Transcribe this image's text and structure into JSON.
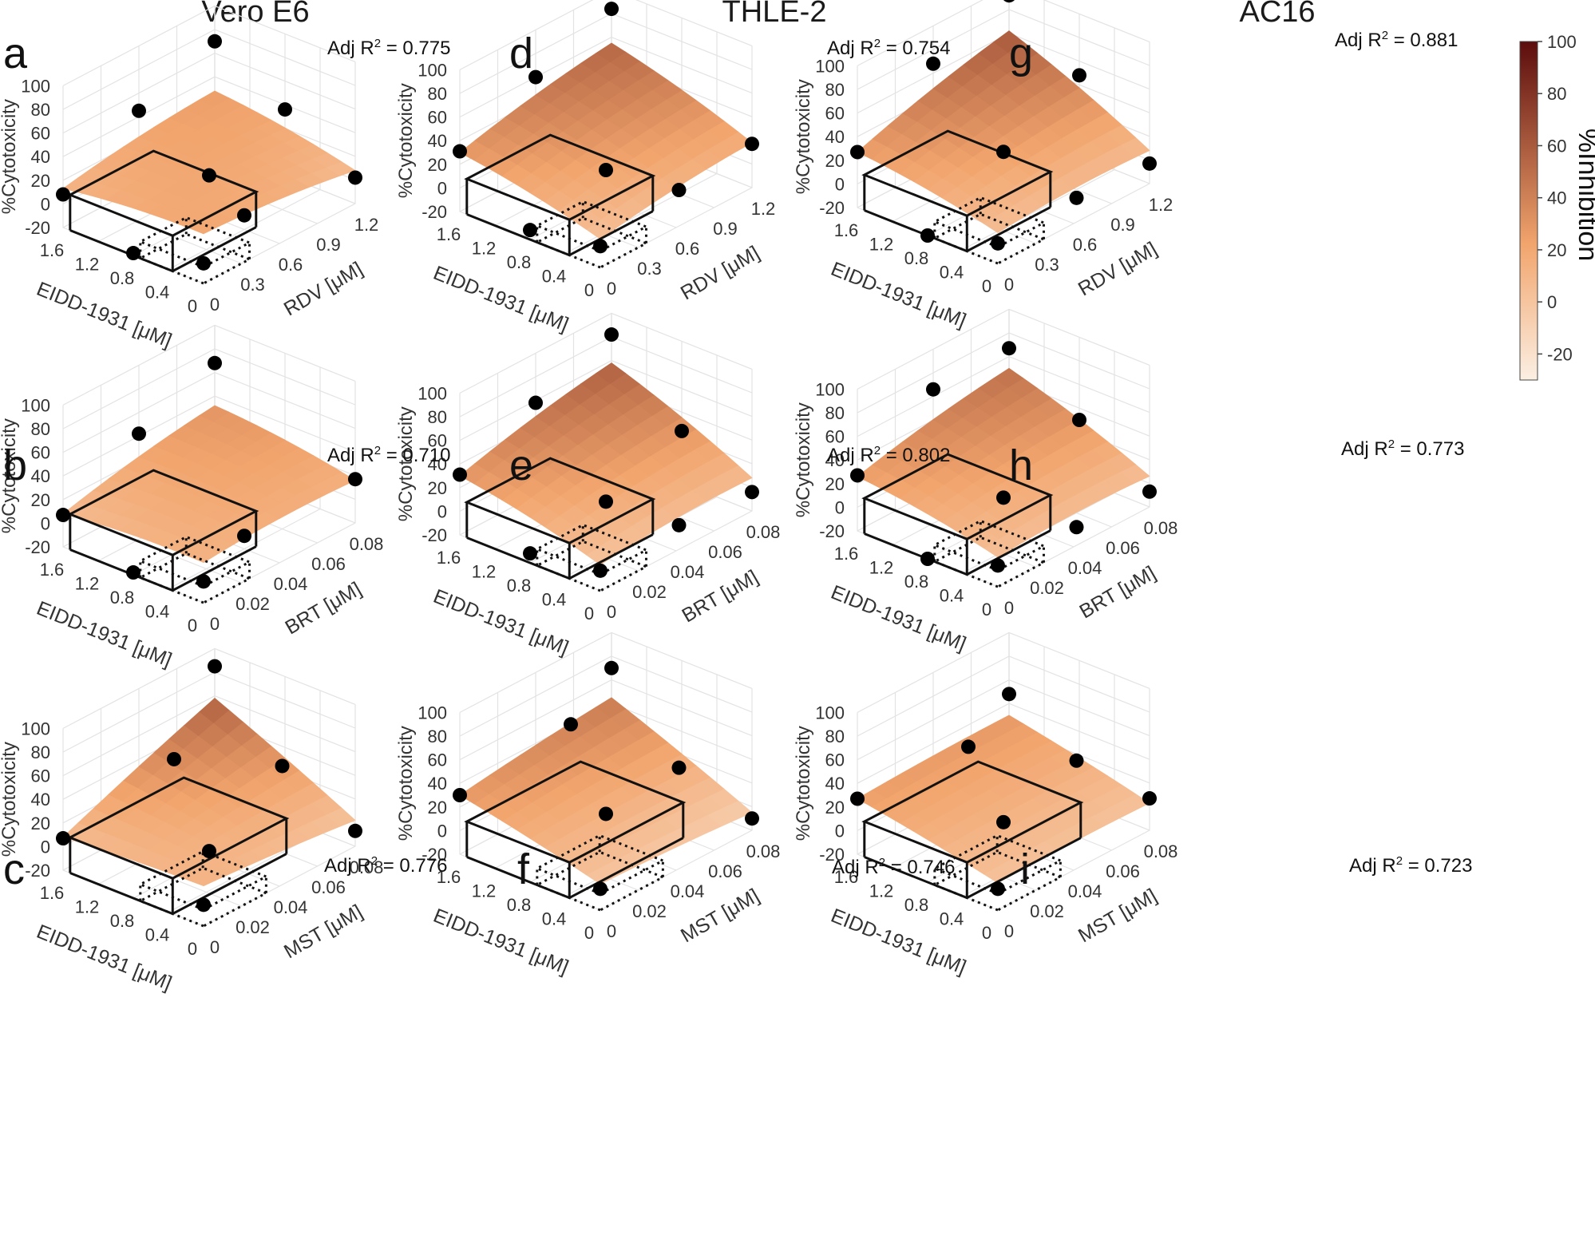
{
  "columns": [
    "Vero E6",
    "THLE-2",
    "AC16"
  ],
  "z_ticks": [
    "100",
    "80",
    "60",
    "40",
    "20",
    "0",
    "-20"
  ],
  "z_label": "%Cytotoxicity",
  "x_label": "EIDD-1931 [μM]",
  "x_ticks": [
    "1.6",
    "1.2",
    "0.8",
    "0.4",
    "0"
  ],
  "rows": [
    {
      "y_label": "RDV [μM]",
      "y_ticks": [
        "0",
        "0.3",
        "0.6",
        "0.9",
        "1.2"
      ]
    },
    {
      "y_label": "BRT [μM]",
      "y_ticks": [
        "0",
        "0.02",
        "0.04",
        "0.06",
        "0.08"
      ]
    },
    {
      "y_label": "MST [μM]",
      "y_ticks": [
        "0",
        "0.02",
        "0.04",
        "0.06",
        "0.08"
      ]
    }
  ],
  "r2_prefix": "Adj R",
  "r2_exp": "2",
  "colorbar": {
    "label": "%Inhibition",
    "ticks": [
      "100",
      "80",
      "60",
      "40",
      "20",
      "0",
      "-20"
    ]
  },
  "colors": {
    "low": "#fbefe3",
    "mid": "#f2a56d",
    "high": "#5c0c0c",
    "point": "#000000"
  },
  "chart_data": [
    {
      "panel": "a",
      "cell": "Vero E6",
      "combo": "EIDD-1931 + RDV",
      "type": "surface3d",
      "adj_r2": "0.775",
      "adj_r2_text": "= 0.775",
      "corners": {
        "x0y0": 22,
        "x0y1": 8,
        "x1y0": 13,
        "x1y1": 28
      },
      "zlim": [
        -20,
        100
      ],
      "points": [
        [
          1.6,
          0,
          8
        ],
        [
          1.6,
          1.2,
          70
        ],
        [
          0,
          1.2,
          2
        ],
        [
          0,
          0,
          -3
        ],
        [
          0.8,
          0,
          -18
        ],
        [
          1.6,
          0.6,
          45
        ],
        [
          0.8,
          1.2,
          36
        ],
        [
          0.4,
          0.6,
          -8
        ],
        [
          0.8,
          0.6,
          14
        ]
      ]
    },
    {
      "panel": "b",
      "cell": "Vero E6",
      "combo": "EIDD-1931 + BRT",
      "type": "surface3d",
      "adj_r2": "0.710",
      "adj_r2_text": "= 0.710",
      "corners": {
        "x0y0": 14,
        "x0y1": 16,
        "x1y0": 8,
        "x1y1": 32
      },
      "zlim": [
        -20,
        100
      ],
      "points": [
        [
          1.6,
          0,
          7
        ],
        [
          1.6,
          0.08,
          68
        ],
        [
          0,
          0.08,
          17
        ],
        [
          0,
          0,
          -2
        ],
        [
          0.8,
          0,
          -18
        ],
        [
          1.6,
          0.04,
          42
        ],
        [
          0.4,
          0.04,
          -9
        ]
      ]
    },
    {
      "panel": "c",
      "cell": "Vero E6",
      "combo": "EIDD-1931 + MST",
      "type": "surface3d",
      "adj_r2": "0.776",
      "adj_r2_text": "= 0.776",
      "corners": {
        "x0y0": 14,
        "x0y1": 2,
        "x1y0": 8,
        "x1y1": 58
      },
      "zlim": [
        -20,
        100
      ],
      "points": [
        [
          1.6,
          0,
          7
        ],
        [
          1.6,
          0.08,
          85
        ],
        [
          0,
          0.08,
          -7
        ],
        [
          0,
          0,
          -2
        ],
        [
          1.2,
          0.04,
          52
        ],
        [
          0.4,
          0.06,
          53
        ],
        [
          0.8,
          0.04,
          -14
        ]
      ]
    },
    {
      "panel": "d",
      "cell": "THLE-2",
      "combo": "EIDD-1931 + RDV",
      "type": "surface3d",
      "adj_r2": "0.754",
      "adj_r2_text": "= 0.754",
      "corners": {
        "x0y0": 4,
        "x0y1": 18,
        "x1y0": 30,
        "x1y1": 55
      },
      "zlim": [
        -20,
        100
      ],
      "points": [
        [
          1.6,
          0,
          31
        ],
        [
          1.6,
          1.2,
          84
        ],
        [
          0,
          1.2,
          17
        ],
        [
          0,
          0,
          -2
        ],
        [
          0.8,
          0,
          -12
        ],
        [
          1.6,
          0.6,
          60
        ],
        [
          0.4,
          0.9,
          -17
        ],
        [
          0.8,
          0.6,
          5
        ]
      ]
    },
    {
      "panel": "e",
      "cell": "THLE-2",
      "combo": "EIDD-1931 + BRT",
      "type": "surface3d",
      "adj_r2": "0.802",
      "adj_r2_text": "= 0.802",
      "corners": {
        "x0y0": 2,
        "x0y1": 8,
        "x1y0": 30,
        "x1y1": 58
      },
      "zlim": [
        -20,
        100
      ],
      "points": [
        [
          1.6,
          0,
          31
        ],
        [
          1.6,
          0.08,
          82
        ],
        [
          0,
          0.08,
          -4
        ],
        [
          0,
          0,
          -3
        ],
        [
          0.8,
          0,
          -12
        ],
        [
          1.6,
          0.04,
          58
        ],
        [
          0.4,
          0.06,
          -27
        ],
        [
          0.8,
          0.04,
          -2
        ],
        [
          0.8,
          0.08,
          24
        ]
      ]
    },
    {
      "panel": "f",
      "cell": "THLE-2",
      "combo": "EIDD-1931 + MST",
      "type": "surface3d",
      "adj_r2": "0.746",
      "adj_r2_text": "= 0.746",
      "corners": {
        "x0y0": 2,
        "x0y1": -5,
        "x1y0": 30,
        "x1y1": 45
      },
      "zlim": [
        -20,
        100
      ],
      "points": [
        [
          1.6,
          0,
          30
        ],
        [
          1.6,
          0.08,
          70
        ],
        [
          0,
          0.08,
          -10
        ],
        [
          0,
          0,
          -2
        ],
        [
          1.2,
          0.04,
          68
        ],
        [
          0.4,
          0.06,
          38
        ],
        [
          0.8,
          0.04,
          4
        ]
      ]
    },
    {
      "panel": "g",
      "cell": "AC16",
      "combo": "EIDD-1931 + RDV",
      "type": "surface3d",
      "adj_r2": "0.881",
      "adj_r2_text": "= 0.881",
      "corners": {
        "x0y0": 6,
        "x0y1": 8,
        "x1y0": 27,
        "x1y1": 62
      },
      "zlim": [
        -20,
        100
      ],
      "points": [
        [
          1.6,
          0,
          27
        ],
        [
          1.6,
          1.2,
          92
        ],
        [
          0,
          1.2,
          -3
        ],
        [
          0,
          0,
          -3
        ],
        [
          0.8,
          0,
          -20
        ],
        [
          1.6,
          0.6,
          68
        ],
        [
          0.4,
          0.9,
          -27
        ],
        [
          0.8,
          1.2,
          48
        ],
        [
          0.8,
          0.6,
          17
        ]
      ]
    },
    {
      "panel": "h",
      "cell": "AC16",
      "combo": "EIDD-1931 + BRT",
      "type": "surface3d",
      "adj_r2": "0.773",
      "adj_r2_text": "= 0.773",
      "corners": {
        "x0y0": 5,
        "x0y1": 6,
        "x1y0": 26,
        "x1y1": 50
      },
      "zlim": [
        -20,
        100
      ],
      "points": [
        [
          1.6,
          0,
          27
        ],
        [
          1.6,
          0.08,
          67
        ],
        [
          0,
          0.08,
          -7
        ],
        [
          0,
          0,
          -2
        ],
        [
          0.8,
          0,
          -20
        ],
        [
          1.6,
          0.04,
          66
        ],
        [
          0.4,
          0.06,
          -32
        ],
        [
          0.8,
          0.04,
          -2
        ],
        [
          0.8,
          0.08,
          30
        ]
      ]
    },
    {
      "panel": "i",
      "cell": "AC16",
      "combo": "EIDD-1931 + MST",
      "type": "surface3d",
      "adj_r2": "0.723",
      "adj_r2_text": "= 0.723",
      "corners": {
        "x0y0": 3,
        "x0y1": 3,
        "x1y0": 27,
        "x1y1": 30
      },
      "zlim": [
        -20,
        100
      ],
      "points": [
        [
          1.6,
          0,
          27
        ],
        [
          1.6,
          0.08,
          48
        ],
        [
          0,
          0.08,
          7
        ],
        [
          0,
          0,
          -2
        ],
        [
          1.2,
          0.04,
          49
        ],
        [
          0.4,
          0.06,
          44
        ],
        [
          0.8,
          0.04,
          -3
        ]
      ]
    }
  ]
}
